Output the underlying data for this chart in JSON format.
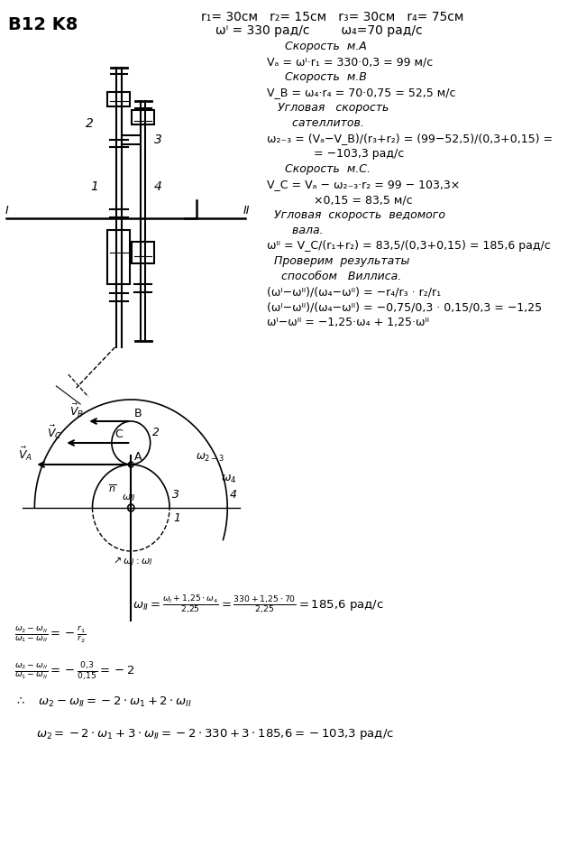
{
  "title": "B12 K8",
  "bg_color": "#ffffff",
  "text_color": "#1a1a1a",
  "header_line1": "r₁= 30см   r₂= 15см   r₃= 30см   r₄= 75см",
  "header_line2": "ωᴵ = 330 рад/с        ω₄=70 рад/с",
  "right_lines": [
    [
      "     Скорость  м.A",
      true
    ],
    [
      "Vₐ = ωᴵ·r₁ = 330·0,3 = 99 м/с",
      false
    ],
    [
      "     Скорость  м.B",
      true
    ],
    [
      "V_B = ω₄·r₄ = 70·0,75 = 52,5 м/с",
      false
    ],
    [
      "   Угловая   скорость",
      true
    ],
    [
      "       сателлитов.",
      true
    ],
    [
      "ω₂₋₃ = (Vₐ−V_B)/(r₃+r₂) = (99−52,5)/(0,3+0,15) =",
      false
    ],
    [
      "             = −103,3 рад/с",
      false
    ],
    [
      "     Скорость  м.C.",
      true
    ],
    [
      "V_C = Vₐ − ω₂₋₃·r₂ = 99 − 103,3×",
      false
    ],
    [
      "             ×0,15 = 83,5 м/с",
      false
    ],
    [
      "  Угловая  скорость  ведомого",
      true
    ],
    [
      "       вала.",
      true
    ],
    [
      "ωᴵᴵ = V_C/(r₁+r₂) = 83,5/(0,3+0,15) = 185,6 рад/с",
      false
    ],
    [
      "  Проверим  результаты",
      true
    ],
    [
      "    способом   Виллиса.",
      true
    ],
    [
      "(ωᴵ−ωᴵᴵ)/(ω₄−ωᴵᴵ) = −r₄/r₃ · r₂/r₁",
      false
    ],
    [
      "(ωᴵ−ωᴵᴵ)/(ω₄−ωᴵᴵ) = −0,75/0,3 · 0,15/0,3 = −1,25",
      false
    ],
    [
      "ωᴵ−ωᴵᴵ = −1,25·ω₄ + 1,25·ωᴵᴵ",
      false
    ]
  ],
  "bottom_lines": [
    [
      180,
      "ωᴵᴵ = (ωᴵ+1,25·ω₄)/2,25 = (330+1,25·70)/2,25 = 185,6 рад/с"
    ],
    [
      18,
      "(ω₂−ωᴵᴵ)/(ωᴵ−ωᴵᴵ) = −r₁/r₂"
    ],
    [
      18,
      "(ω₂−ωᴵᴵ)/(ωᴵ−ωᴵᴵ) = −0,3/0,15 = −2"
    ],
    [
      18,
      "∴  ω₂−ωᴵᴵ = −2·ωᴵ + 2·ωᴵᴵ"
    ],
    [
      45,
      "ω₂ = −2·ωᴵ + 3·ωᴵᴵ = −2·330 + 3·185,6 = −103,3 рад/с"
    ]
  ]
}
